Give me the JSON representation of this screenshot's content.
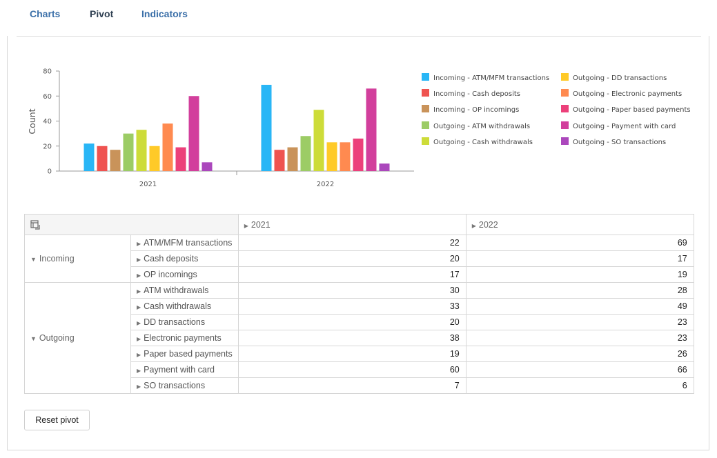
{
  "tabs": [
    {
      "label": "Charts"
    },
    {
      "label": "Pivot"
    },
    {
      "label": "Indicators"
    }
  ],
  "active_tab": "Pivot",
  "chart_data": {
    "type": "bar",
    "categories": [
      "2021",
      "2022"
    ],
    "ylabel": "Count",
    "xlabel": "",
    "ylim": [
      0,
      80
    ],
    "yticks": [
      "0",
      "20",
      "40",
      "60",
      "80"
    ],
    "legend_position": "right",
    "series": [
      {
        "name": "Incoming - ATM/MFM transactions",
        "color": "#29b6f6",
        "values": [
          22,
          69
        ]
      },
      {
        "name": "Incoming - Cash deposits",
        "color": "#ef5350",
        "values": [
          20,
          17
        ]
      },
      {
        "name": "Incoming - OP incomings",
        "color": "#c9935a",
        "values": [
          17,
          19
        ]
      },
      {
        "name": "Outgoing - ATM withdrawals",
        "color": "#9ccc65",
        "values": [
          30,
          28
        ]
      },
      {
        "name": "Outgoing - Cash withdrawals",
        "color": "#cddc39",
        "values": [
          33,
          49
        ]
      },
      {
        "name": "Outgoing - DD transactions",
        "color": "#ffca28",
        "values": [
          20,
          23
        ]
      },
      {
        "name": "Outgoing - Electronic payments",
        "color": "#ff8a50",
        "values": [
          38,
          23
        ]
      },
      {
        "name": "Outgoing - Paper based payments",
        "color": "#ec407a",
        "values": [
          19,
          26
        ]
      },
      {
        "name": "Outgoing - Payment with card",
        "color": "#d23f9c",
        "values": [
          60,
          66
        ]
      },
      {
        "name": "Outgoing - SO transactions",
        "color": "#ab47bc",
        "values": [
          7,
          6
        ]
      }
    ]
  },
  "pivot": {
    "columns": [
      "2021",
      "2022"
    ],
    "groups": [
      {
        "name": "Incoming",
        "rows": [
          {
            "label": "ATM/MFM transactions",
            "values": [
              "22",
              "69"
            ]
          },
          {
            "label": "Cash deposits",
            "values": [
              "20",
              "17"
            ]
          },
          {
            "label": "OP incomings",
            "values": [
              "17",
              "19"
            ]
          }
        ]
      },
      {
        "name": "Outgoing",
        "rows": [
          {
            "label": "ATM withdrawals",
            "values": [
              "30",
              "28"
            ]
          },
          {
            "label": "Cash withdrawals",
            "values": [
              "33",
              "49"
            ]
          },
          {
            "label": "DD transactions",
            "values": [
              "20",
              "23"
            ]
          },
          {
            "label": "Electronic payments",
            "values": [
              "38",
              "23"
            ]
          },
          {
            "label": "Paper based payments",
            "values": [
              "19",
              "26"
            ]
          },
          {
            "label": "Payment with card",
            "values": [
              "60",
              "66"
            ]
          },
          {
            "label": "SO transactions",
            "values": [
              "7",
              "6"
            ]
          }
        ]
      }
    ]
  },
  "reset_button": {
    "label": "Reset pivot"
  }
}
